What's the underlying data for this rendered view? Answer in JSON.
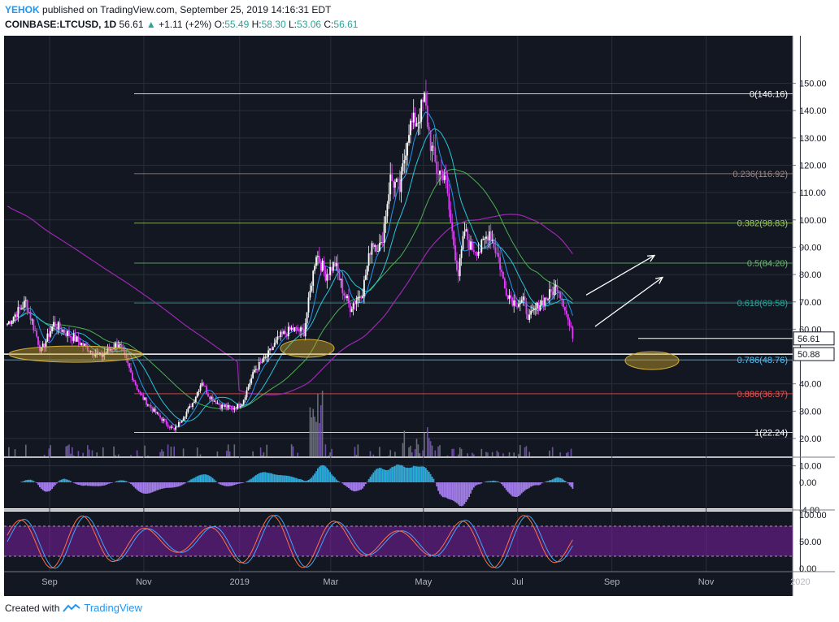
{
  "header": {
    "publisher": "YEHOK",
    "published_text": "published on TradingView.com, September 25, 2019 14:16:31 EDT",
    "symbol": "COINBASE:LTCUSD, 1D",
    "last": "56.61",
    "change": "+1.11 (+2%)",
    "o_label": "O:",
    "o": "55.49",
    "h_label": "H:",
    "h": "58.30",
    "l_label": "L:",
    "l": "53.06",
    "c_label": "C:",
    "c": "56.61"
  },
  "footer": {
    "created_with": "Created with",
    "brand": "TradingView"
  },
  "colors": {
    "background": "#131722",
    "grid": "#2a2e39",
    "up": "#ffffff",
    "down": "#e040fb",
    "ma_fast": "#2196f3",
    "ma_mid": "#4caf50",
    "ma_slow": "#9c27b0",
    "axis_text": "#131722"
  },
  "chart_data": {
    "type": "candlestick",
    "price_axis": {
      "ticks": [
        "150.00",
        "140.00",
        "130.00",
        "120.00",
        "110.00",
        "100.00",
        "90.00",
        "80.00",
        "70.00",
        "60.00",
        "40.00",
        "30.00",
        "20.00",
        "10.00"
      ],
      "ylim": [
        0,
        155
      ]
    },
    "macd_axis": {
      "ticks": [
        "0.00",
        "-4.00"
      ]
    },
    "stoch_axis": {
      "ticks": [
        "100.00",
        "50.00",
        "0.00"
      ]
    },
    "time_axis": {
      "ticks": [
        "Sep",
        "Nov",
        "2019",
        "Mar",
        "May",
        "Jul",
        "Sep",
        "Nov",
        "2020"
      ]
    },
    "last_price_label": "56.61",
    "support_label": "50.88",
    "fib_levels": [
      {
        "ratio": "0",
        "price": 146.16,
        "label": "0(146.16)",
        "color": "#ffffff"
      },
      {
        "ratio": "0.236",
        "price": 116.92,
        "label": "0.236(116.92)",
        "color": "#a1887f"
      },
      {
        "ratio": "0.382",
        "price": 98.83,
        "label": "0.382(98.83)",
        "color": "#9ccc65"
      },
      {
        "ratio": "0.5",
        "price": 84.2,
        "label": "0.5(84.20)",
        "color": "#66bb6a"
      },
      {
        "ratio": "0.618",
        "price": 69.58,
        "label": "0.618(69.58)",
        "color": "#26a69a"
      },
      {
        "ratio": "0.786",
        "price": 48.76,
        "label": "0.786(48.76)",
        "color": "#4fc3f7"
      },
      {
        "ratio": "0.886",
        "price": 36.37,
        "label": "0.886(36.37)",
        "color": "#ef5350"
      },
      {
        "ratio": "1",
        "price": 22.24,
        "label": "1(22.24)",
        "color": "#ffffff"
      }
    ],
    "anchors": [
      {
        "d": 0,
        "p": 62
      },
      {
        "d": 12,
        "p": 70
      },
      {
        "d": 22,
        "p": 52
      },
      {
        "d": 30,
        "p": 62
      },
      {
        "d": 40,
        "p": 58
      },
      {
        "d": 52,
        "p": 53
      },
      {
        "d": 60,
        "p": 50
      },
      {
        "d": 72,
        "p": 55
      },
      {
        "d": 80,
        "p": 44
      },
      {
        "d": 86,
        "p": 36
      },
      {
        "d": 95,
        "p": 30
      },
      {
        "d": 102,
        "p": 26
      },
      {
        "d": 108,
        "p": 23
      },
      {
        "d": 114,
        "p": 28
      },
      {
        "d": 120,
        "p": 33
      },
      {
        "d": 126,
        "p": 41
      },
      {
        "d": 130,
        "p": 36
      },
      {
        "d": 138,
        "p": 32
      },
      {
        "d": 146,
        "p": 31
      },
      {
        "d": 152,
        "p": 33
      },
      {
        "d": 160,
        "p": 45
      },
      {
        "d": 168,
        "p": 50
      },
      {
        "d": 176,
        "p": 57
      },
      {
        "d": 184,
        "p": 60
      },
      {
        "d": 192,
        "p": 59
      },
      {
        "d": 200,
        "p": 88
      },
      {
        "d": 206,
        "p": 80
      },
      {
        "d": 212,
        "p": 84
      },
      {
        "d": 218,
        "p": 73
      },
      {
        "d": 222,
        "p": 68
      },
      {
        "d": 230,
        "p": 74
      },
      {
        "d": 236,
        "p": 92
      },
      {
        "d": 242,
        "p": 90
      },
      {
        "d": 248,
        "p": 115
      },
      {
        "d": 254,
        "p": 111
      },
      {
        "d": 260,
        "p": 134
      },
      {
        "d": 266,
        "p": 137
      },
      {
        "d": 270,
        "p": 144
      },
      {
        "d": 274,
        "p": 128
      },
      {
        "d": 278,
        "p": 118
      },
      {
        "d": 283,
        "p": 117
      },
      {
        "d": 287,
        "p": 99
      },
      {
        "d": 292,
        "p": 80
      },
      {
        "d": 296,
        "p": 96
      },
      {
        "d": 300,
        "p": 90
      },
      {
        "d": 306,
        "p": 89
      },
      {
        "d": 312,
        "p": 96
      },
      {
        "d": 318,
        "p": 86
      },
      {
        "d": 322,
        "p": 75
      },
      {
        "d": 328,
        "p": 70
      },
      {
        "d": 334,
        "p": 70
      },
      {
        "d": 338,
        "p": 64
      },
      {
        "d": 344,
        "p": 69
      },
      {
        "d": 350,
        "p": 72
      },
      {
        "d": 356,
        "p": 76
      },
      {
        "d": 360,
        "p": 70
      },
      {
        "d": 366,
        "p": 56.61
      }
    ]
  }
}
